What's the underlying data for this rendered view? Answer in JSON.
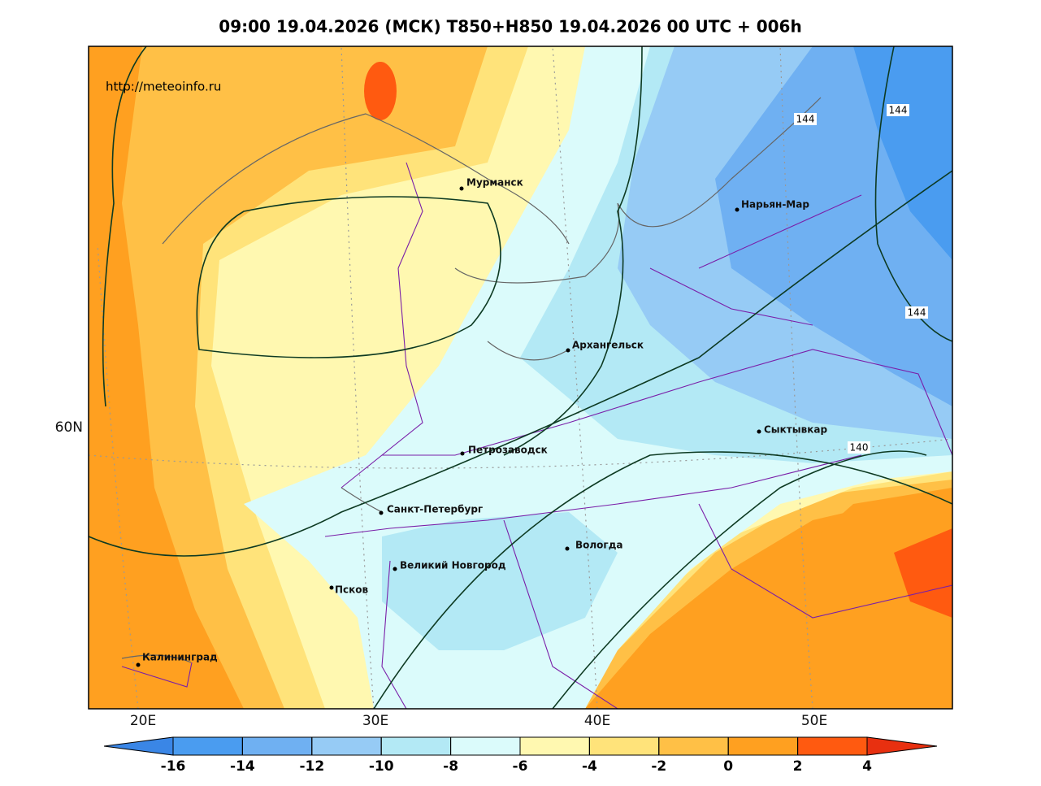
{
  "header": {
    "title": "09:00 19.04.2026 (МСК) T850+H850 19.04.2026 00 UTC + 006h",
    "url": "http://meteoinfo.ru"
  },
  "map": {
    "lon_labels": [
      "20E",
      "30E",
      "40E",
      "50E"
    ],
    "lat_labels": [
      "60N"
    ],
    "cities": [
      "Мурманск",
      "Нарьян-Мар",
      "Архангельск",
      "Сыктывкар",
      "Петрозаводск",
      "Санкт-Петербург",
      "Вологда",
      "Великий Новгород",
      "Псков",
      "Калининград"
    ],
    "contour_labels": [
      144,
      144,
      144,
      140
    ]
  },
  "colorbar": {
    "ticks": [
      -16,
      -14,
      -12,
      -10,
      -8,
      -6,
      -4,
      -2,
      0,
      2,
      4
    ],
    "colors": [
      "#3a86e6",
      "#4a9cf0",
      "#6fb0f2",
      "#96cbf5",
      "#b3e9f5",
      "#dbfbfb",
      "#fff8b0",
      "#ffe37a",
      "#ffc046",
      "#ffa020",
      "#ff5a10",
      "#e83010"
    ]
  }
}
